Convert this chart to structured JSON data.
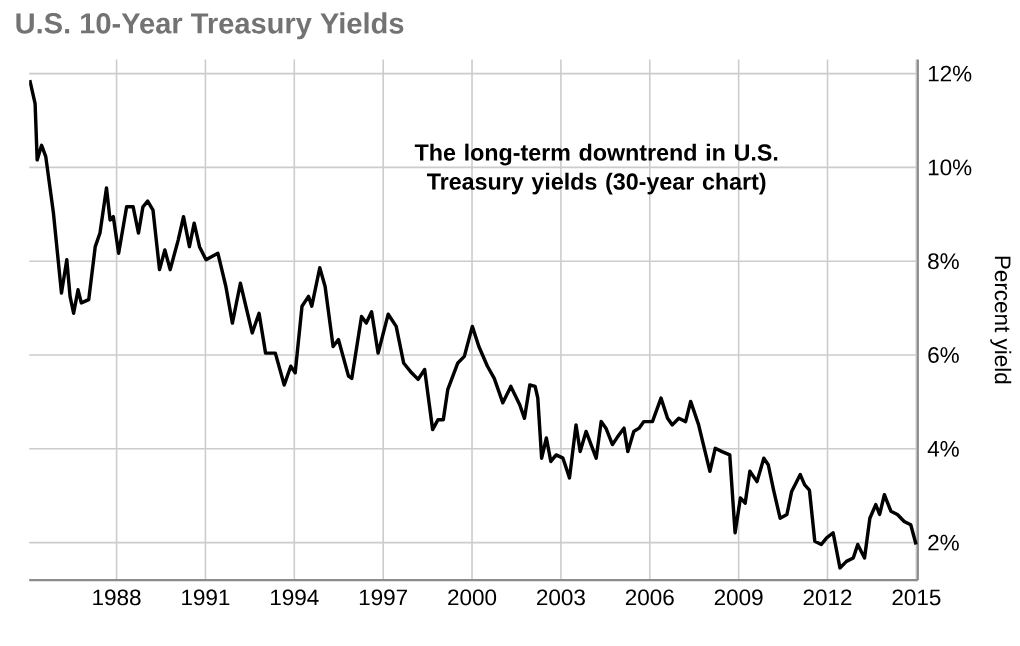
{
  "chart_data": {
    "type": "line",
    "title": "U.S. 10-Year Treasury Yields",
    "ylabel": "Percent yield",
    "annotations": [
      "The long-term downtrend in U.S. Treasury yields (30-year chart)"
    ],
    "xlim": [
      1985.05,
      2015.05
    ],
    "ylim": [
      1.2,
      12.3
    ],
    "xticks": [
      1988,
      1991,
      1994,
      1997,
      2000,
      2003,
      2006,
      2009,
      2012,
      2015
    ],
    "yticks": [
      {
        "value": 2,
        "label": "2%"
      },
      {
        "value": 4,
        "label": "4%"
      },
      {
        "value": 6,
        "label": "6%"
      },
      {
        "value": 8,
        "label": "8%"
      },
      {
        "value": 10,
        "label": "10%"
      },
      {
        "value": 12,
        "label": "12%"
      }
    ],
    "grid": true,
    "series": [
      {
        "color": "#000000",
        "x": [
          1985.07,
          1985.25,
          1985.32,
          1985.47,
          1985.61,
          1985.87,
          1986.14,
          1986.32,
          1986.43,
          1986.55,
          1986.7,
          1986.81,
          1987.06,
          1987.28,
          1987.44,
          1987.66,
          1987.78,
          1987.89,
          1988.07,
          1988.34,
          1988.56,
          1988.74,
          1988.89,
          1989.05,
          1989.23,
          1989.45,
          1989.63,
          1989.81,
          1990.08,
          1990.26,
          1990.46,
          1990.62,
          1990.8,
          1991.02,
          1991.42,
          1991.69,
          1991.91,
          1992.18,
          1992.58,
          1992.81,
          1993.03,
          1993.36,
          1993.66,
          1993.88,
          1994.03,
          1994.26,
          1994.48,
          1994.59,
          1994.86,
          1995.04,
          1995.31,
          1995.49,
          1995.83,
          1995.94,
          1996.27,
          1996.43,
          1996.61,
          1996.83,
          1997.17,
          1997.44,
          1997.69,
          1997.96,
          1998.18,
          1998.4,
          1998.67,
          1998.85,
          1999.03,
          1999.18,
          1999.52,
          1999.74,
          2000.01,
          2000.23,
          2000.52,
          2000.75,
          2001.04,
          2001.31,
          2001.61,
          2001.77,
          2001.95,
          2002.13,
          2002.22,
          2002.35,
          2002.51,
          2002.66,
          2002.84,
          2003.07,
          2003.29,
          2003.51,
          2003.65,
          2003.85,
          2004.19,
          2004.36,
          2004.52,
          2004.74,
          2004.92,
          2005.13,
          2005.26,
          2005.46,
          2005.64,
          2005.8,
          2006.09,
          2006.38,
          2006.6,
          2006.76,
          2006.98,
          2007.21,
          2007.38,
          2007.65,
          2007.81,
          2008.03,
          2008.21,
          2008.44,
          2008.7,
          2008.88,
          2009.06,
          2009.22,
          2009.38,
          2009.62,
          2009.85,
          2010.0,
          2010.18,
          2010.4,
          2010.63,
          2010.79,
          2011.08,
          2011.23,
          2011.39,
          2011.57,
          2011.79,
          2011.97,
          2012.19,
          2012.42,
          2012.64,
          2012.87,
          2013.02,
          2013.25,
          2013.43,
          2013.63,
          2013.76,
          2013.92,
          2014.14,
          2014.36,
          2014.59,
          2014.81,
          2014.99
        ],
        "values": [
          11.86,
          11.36,
          10.16,
          10.47,
          10.23,
          9.02,
          7.32,
          8.03,
          7.25,
          6.89,
          7.39,
          7.11,
          7.18,
          8.31,
          8.6,
          9.56,
          8.88,
          8.95,
          8.17,
          9.16,
          9.16,
          8.6,
          9.16,
          9.28,
          9.09,
          7.82,
          8.24,
          7.82,
          8.45,
          8.95,
          8.31,
          8.81,
          8.31,
          8.03,
          8.17,
          7.46,
          6.68,
          7.53,
          6.47,
          6.89,
          6.04,
          6.04,
          5.36,
          5.76,
          5.62,
          7.04,
          7.25,
          7.04,
          7.86,
          7.46,
          6.18,
          6.33,
          5.55,
          5.5,
          6.82,
          6.68,
          6.92,
          6.04,
          6.87,
          6.61,
          5.83,
          5.62,
          5.48,
          5.69,
          4.41,
          4.62,
          4.62,
          5.26,
          5.83,
          5.97,
          6.61,
          6.18,
          5.76,
          5.5,
          4.98,
          5.33,
          4.94,
          4.65,
          5.36,
          5.33,
          5.08,
          3.8,
          4.23,
          3.73,
          3.87,
          3.8,
          3.38,
          4.51,
          3.94,
          4.37,
          3.8,
          4.58,
          4.44,
          4.09,
          4.26,
          4.44,
          3.94,
          4.37,
          4.44,
          4.58,
          4.58,
          5.08,
          4.65,
          4.51,
          4.65,
          4.58,
          5.01,
          4.51,
          4.09,
          3.52,
          4.01,
          3.94,
          3.87,
          2.21,
          2.95,
          2.84,
          3.52,
          3.3,
          3.8,
          3.66,
          3.12,
          2.52,
          2.6,
          3.09,
          3.45,
          3.23,
          3.12,
          2.03,
          1.96,
          2.1,
          2.21,
          1.46,
          1.6,
          1.67,
          1.96,
          1.67,
          2.52,
          2.81,
          2.6,
          3.02,
          2.67,
          2.6,
          2.45,
          2.38,
          1.96
        ]
      }
    ]
  }
}
